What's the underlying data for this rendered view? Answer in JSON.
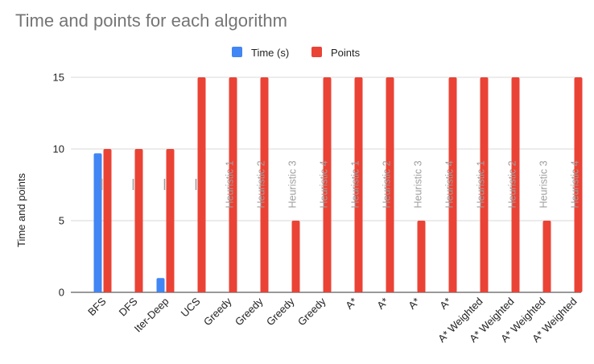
{
  "chart_data": {
    "type": "bar",
    "title": "Time and points for each algorithm",
    "ylabel": "Time and points",
    "xlabel": "",
    "ylim": [
      0,
      15
    ],
    "yticks": [
      0,
      5,
      10,
      15
    ],
    "grid": true,
    "legend_position": "top-center",
    "categories": [
      {
        "label": "BFS",
        "sub": ""
      },
      {
        "label": "DFS",
        "sub": ""
      },
      {
        "label": "Iter-Deep",
        "sub": ""
      },
      {
        "label": "UCS",
        "sub": ""
      },
      {
        "label": "Greedy",
        "sub": "Heuristic 1"
      },
      {
        "label": "Greedy",
        "sub": "Heuristic 2"
      },
      {
        "label": "Greedy",
        "sub": "Heuristic 3"
      },
      {
        "label": "Greedy",
        "sub": "Heuristic 4"
      },
      {
        "label": "A*",
        "sub": "Heuristic 1"
      },
      {
        "label": "A*",
        "sub": "Heuristic 2"
      },
      {
        "label": "A*",
        "sub": "Heuristic 3"
      },
      {
        "label": "A*",
        "sub": "Heuristic 4"
      },
      {
        "label": "A* Weighted",
        "sub": "Heuristic 1"
      },
      {
        "label": "A* Weighted",
        "sub": "Heuristic 2"
      },
      {
        "label": "A* Weighted",
        "sub": "Heuristic 3"
      },
      {
        "label": "A* Weighted",
        "sub": "Heuristic 4"
      }
    ],
    "series": [
      {
        "name": "Time (s)",
        "color": "#4285f4",
        "values": [
          9.7,
          0,
          1,
          0,
          0,
          0,
          0,
          0,
          0,
          0,
          0,
          0,
          0,
          0,
          0,
          0
        ]
      },
      {
        "name": "Points",
        "color": "#ea4335",
        "values": [
          10,
          10,
          10,
          15,
          15,
          15,
          5,
          15,
          15,
          15,
          5,
          15,
          15,
          15,
          5,
          15
        ]
      }
    ]
  }
}
